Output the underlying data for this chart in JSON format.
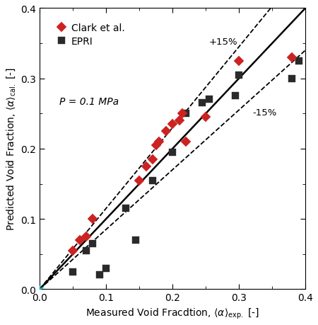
{
  "clark_x": [
    0.05,
    0.06,
    0.07,
    0.08,
    0.15,
    0.16,
    0.17,
    0.175,
    0.18,
    0.19,
    0.2,
    0.21,
    0.215,
    0.22,
    0.25,
    0.3,
    0.38
  ],
  "clark_y": [
    0.055,
    0.07,
    0.075,
    0.1,
    0.155,
    0.175,
    0.185,
    0.205,
    0.21,
    0.225,
    0.235,
    0.24,
    0.25,
    0.21,
    0.245,
    0.325,
    0.33
  ],
  "epri_x": [
    0.05,
    0.07,
    0.08,
    0.09,
    0.1,
    0.13,
    0.145,
    0.17,
    0.2,
    0.22,
    0.245,
    0.255,
    0.295,
    0.3,
    0.38,
    0.39
  ],
  "epri_y": [
    0.025,
    0.055,
    0.065,
    0.02,
    0.03,
    0.115,
    0.07,
    0.155,
    0.195,
    0.25,
    0.265,
    0.27,
    0.275,
    0.305,
    0.3,
    0.325
  ],
  "clark_color": "#cc2222",
  "epri_color": "#2a2a2a",
  "clark_label": "Clark et al.",
  "epri_label": "EPRI",
  "pressure_label": "P = 0.1 MPa",
  "xlim": [
    0.0,
    0.4
  ],
  "ylim": [
    0.0,
    0.4
  ],
  "xticks": [
    0.0,
    0.1,
    0.2,
    0.3,
    0.4
  ],
  "yticks": [
    0.0,
    0.1,
    0.2,
    0.3,
    0.4
  ],
  "plus15_label": "+15%",
  "minus15_label": "-15%",
  "origin_marker_color": "#00bbbb",
  "figwidth": 4.5,
  "figheight": 4.6
}
